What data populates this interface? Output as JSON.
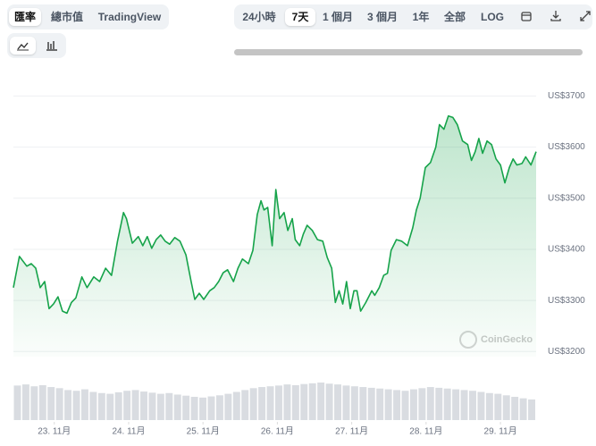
{
  "toolbar": {
    "left_tabs": [
      "匯率",
      "總市值",
      "TradingView"
    ],
    "range_tabs": [
      "24小時",
      "7天",
      "1 個月",
      "3 個月",
      "1年",
      "全部",
      "LOG"
    ]
  },
  "chart_data": {
    "type": "line",
    "annotation": "CoinGecko",
    "color": "#16a34a",
    "grid": true,
    "x": [
      22.45,
      22.53,
      22.63,
      22.69,
      22.75,
      22.81,
      22.87,
      22.93,
      22.99,
      23.05,
      23.11,
      23.17,
      23.23,
      23.29,
      23.37,
      23.44,
      23.53,
      23.61,
      23.69,
      23.77,
      23.85,
      23.93,
      23.97,
      24.05,
      24.13,
      24.19,
      24.25,
      24.31,
      24.37,
      24.43,
      24.49,
      24.55,
      24.62,
      24.69,
      24.77,
      24.84,
      24.89,
      24.95,
      25.01,
      25.09,
      25.15,
      25.21,
      25.27,
      25.33,
      25.41,
      25.47,
      25.53,
      25.61,
      25.67,
      25.73,
      25.78,
      25.82,
      25.87,
      25.93,
      25.98,
      26.03,
      26.09,
      26.14,
      26.2,
      26.24,
      26.3,
      26.35,
      26.4,
      26.47,
      26.54,
      26.61,
      26.67,
      26.73,
      26.78,
      26.83,
      26.88,
      26.93,
      26.98,
      27.03,
      27.07,
      27.12,
      27.19,
      27.27,
      27.31,
      27.37,
      27.43,
      27.48,
      27.53,
      27.6,
      27.67,
      27.75,
      27.82,
      27.87,
      27.92,
      27.99,
      28.06,
      28.13,
      28.18,
      28.24,
      28.3,
      28.36,
      28.42,
      28.49,
      28.56,
      28.61,
      28.66,
      28.71,
      28.76,
      28.82,
      28.88,
      28.94,
      29.0,
      29.06,
      29.12,
      29.17,
      29.22,
      29.29,
      29.34,
      29.41,
      29.48
    ],
    "values": [
      3325,
      3386,
      3367,
      3372,
      3363,
      3325,
      3337,
      3284,
      3293,
      3307,
      3279,
      3275,
      3296,
      3305,
      3346,
      3325,
      3346,
      3337,
      3363,
      3349,
      3416,
      3472,
      3460,
      3412,
      3425,
      3407,
      3425,
      3402,
      3419,
      3428,
      3416,
      3410,
      3423,
      3416,
      3389,
      3337,
      3302,
      3314,
      3302,
      3319,
      3325,
      3337,
      3354,
      3360,
      3337,
      3363,
      3381,
      3372,
      3398,
      3468,
      3495,
      3477,
      3482,
      3407,
      3517,
      3460,
      3472,
      3437,
      3460,
      3419,
      3407,
      3430,
      3447,
      3437,
      3419,
      3416,
      3384,
      3363,
      3296,
      3319,
      3293,
      3337,
      3284,
      3319,
      3319,
      3279,
      3296,
      3319,
      3310,
      3325,
      3349,
      3353,
      3398,
      3419,
      3416,
      3407,
      3442,
      3477,
      3500,
      3560,
      3570,
      3600,
      3644,
      3635,
      3661,
      3658,
      3644,
      3612,
      3605,
      3574,
      3591,
      3617,
      3588,
      3612,
      3605,
      3577,
      3565,
      3530,
      3560,
      3577,
      3565,
      3568,
      3581,
      3565,
      3591
    ],
    "xlim": [
      22.45,
      29.48
    ],
    "xticks": [
      {
        "value": 23,
        "label": "23. 11月"
      },
      {
        "value": 24,
        "label": "24. 11月"
      },
      {
        "value": 25,
        "label": "25. 11月"
      },
      {
        "value": 26,
        "label": "26. 11月"
      },
      {
        "value": 27,
        "label": "27. 11月"
      },
      {
        "value": 28,
        "label": "28. 11月"
      },
      {
        "value": 29,
        "label": "29. 11月"
      }
    ],
    "ylim": [
      3190,
      3720
    ],
    "yticks": [
      {
        "value": 3200,
        "label": "US$3200"
      },
      {
        "value": 3300,
        "label": "US$3300"
      },
      {
        "value": 3400,
        "label": "US$3400"
      },
      {
        "value": 3500,
        "label": "US$3500"
      },
      {
        "value": 3600,
        "label": "US$3600"
      },
      {
        "value": 3700,
        "label": "US$3700"
      }
    ],
    "volume": {
      "color": "#d9dce1",
      "y2lim": [
        0,
        100
      ],
      "values": [
        92,
        95,
        90,
        93,
        88,
        85,
        80,
        78,
        82,
        75,
        72,
        70,
        74,
        78,
        80,
        76,
        73,
        70,
        72,
        68,
        65,
        62,
        60,
        63,
        66,
        70,
        75,
        80,
        85,
        88,
        90,
        92,
        95,
        93,
        96,
        98,
        100,
        97,
        95,
        92,
        90,
        88,
        86,
        84,
        82,
        80,
        78,
        82,
        85,
        88,
        86,
        84,
        82,
        80,
        78,
        75,
        72,
        70,
        66,
        62,
        58,
        55
      ]
    }
  }
}
